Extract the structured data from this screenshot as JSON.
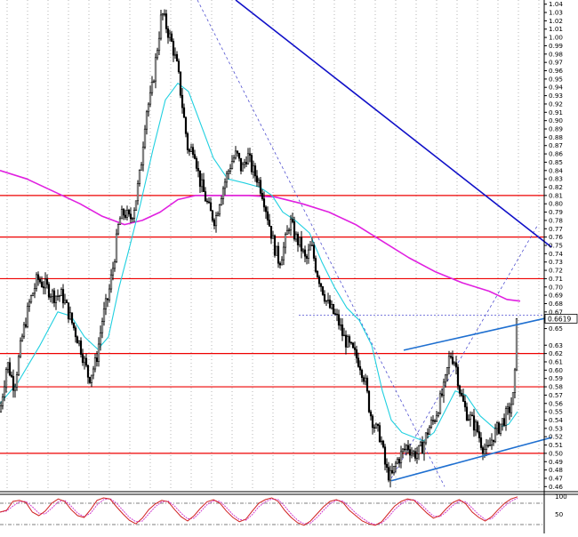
{
  "chart_data": [
    {
      "type": "candlestick",
      "axis": {
        "ylim": [
          0.455,
          1.045
        ],
        "ticks": [
          "1.04",
          "1.03",
          "1.02",
          "1.01",
          "1.00",
          "0.99",
          "0.98",
          "0.97",
          "0.96",
          "0.95",
          "0.94",
          "0.93",
          "0.92",
          "0.91",
          "0.90",
          "0.89",
          "0.88",
          "0.87",
          "0.86",
          "0.85",
          "0.84",
          "0.83",
          "0.82",
          "0.81",
          "0.80",
          "0.79",
          "0.78",
          "0.77",
          "0.76",
          "0.75",
          "0.74",
          "0.73",
          "0.72",
          "0.71",
          "0.70",
          "0.69",
          "0.68",
          "0.67",
          "0.66",
          "0.65",
          "0.63",
          "0.62",
          "0.61",
          "0.60",
          "0.59",
          "0.58",
          "0.57",
          "0.56",
          "0.55",
          "0.54",
          "0.53",
          "0.52",
          "0.51",
          "0.50",
          "0.49",
          "0.48",
          "0.47",
          "0.46"
        ],
        "position": "right",
        "grid": "vertical-dotted"
      },
      "last_price": "0.6619",
      "colors": {
        "candle": "#000000",
        "horizontal_levels": "#ee0000",
        "trendlines": "#1e6fd0",
        "long_trendline": "#1010c8",
        "slow_ma": "#e020e0",
        "fast_ma": "#20d0e0",
        "dotted_guides": "#5050d0"
      },
      "horizontal_levels": [
        0.81,
        0.76,
        0.71,
        0.62,
        0.58,
        0.5
      ],
      "dotted_level": 0.666,
      "control_points": [
        [
          0,
          0.55
        ],
        [
          8,
          0.61
        ],
        [
          16,
          0.58
        ],
        [
          25,
          0.64
        ],
        [
          33,
          0.68
        ],
        [
          42,
          0.71
        ],
        [
          52,
          0.7
        ],
        [
          60,
          0.69
        ],
        [
          70,
          0.69
        ],
        [
          80,
          0.66
        ],
        [
          90,
          0.63
        ],
        [
          100,
          0.59
        ],
        [
          108,
          0.61
        ],
        [
          115,
          0.66
        ],
        [
          122,
          0.69
        ],
        [
          128,
          0.73
        ],
        [
          134,
          0.78
        ],
        [
          140,
          0.79
        ],
        [
          146,
          0.78
        ],
        [
          152,
          0.8
        ],
        [
          158,
          0.84
        ],
        [
          164,
          0.91
        ],
        [
          170,
          0.93
        ],
        [
          176,
          0.98
        ],
        [
          182,
          1.03
        ],
        [
          188,
          1.01
        ],
        [
          194,
          0.99
        ],
        [
          200,
          0.96
        ],
        [
          206,
          0.91
        ],
        [
          212,
          0.86
        ],
        [
          218,
          0.87
        ],
        [
          224,
          0.83
        ],
        [
          230,
          0.81
        ],
        [
          236,
          0.79
        ],
        [
          242,
          0.78
        ],
        [
          248,
          0.81
        ],
        [
          254,
          0.83
        ],
        [
          260,
          0.85
        ],
        [
          266,
          0.86
        ],
        [
          272,
          0.84
        ],
        [
          278,
          0.86
        ],
        [
          284,
          0.84
        ],
        [
          290,
          0.83
        ],
        [
          296,
          0.81
        ],
        [
          302,
          0.78
        ],
        [
          308,
          0.75
        ],
        [
          314,
          0.73
        ],
        [
          320,
          0.75
        ],
        [
          326,
          0.78
        ],
        [
          332,
          0.76
        ],
        [
          338,
          0.75
        ],
        [
          344,
          0.73
        ],
        [
          350,
          0.75
        ],
        [
          356,
          0.72
        ],
        [
          362,
          0.7
        ],
        [
          368,
          0.68
        ],
        [
          374,
          0.67
        ],
        [
          380,
          0.66
        ],
        [
          386,
          0.64
        ],
        [
          392,
          0.63
        ],
        [
          398,
          0.62
        ],
        [
          404,
          0.61
        ],
        [
          410,
          0.59
        ],
        [
          416,
          0.55
        ],
        [
          422,
          0.53
        ],
        [
          428,
          0.52
        ],
        [
          434,
          0.48
        ],
        [
          440,
          0.47
        ],
        [
          446,
          0.49
        ],
        [
          452,
          0.5
        ],
        [
          458,
          0.51
        ],
        [
          464,
          0.5
        ],
        [
          470,
          0.5
        ],
        [
          476,
          0.51
        ],
        [
          482,
          0.53
        ],
        [
          488,
          0.54
        ],
        [
          494,
          0.56
        ],
        [
          500,
          0.58
        ],
        [
          506,
          0.62
        ],
        [
          512,
          0.61
        ],
        [
          518,
          0.57
        ],
        [
          524,
          0.55
        ],
        [
          530,
          0.54
        ],
        [
          536,
          0.53
        ],
        [
          542,
          0.51
        ],
        [
          548,
          0.5
        ],
        [
          554,
          0.52
        ],
        [
          560,
          0.53
        ],
        [
          566,
          0.54
        ],
        [
          572,
          0.55
        ],
        [
          578,
          0.57
        ],
        [
          582,
          0.66
        ]
      ],
      "fast_ma": [
        [
          0,
          0.56
        ],
        [
          20,
          0.585
        ],
        [
          45,
          0.63
        ],
        [
          65,
          0.67
        ],
        [
          80,
          0.665
        ],
        [
          95,
          0.64
        ],
        [
          110,
          0.625
        ],
        [
          122,
          0.64
        ],
        [
          134,
          0.7
        ],
        [
          145,
          0.745
        ],
        [
          158,
          0.8
        ],
        [
          172,
          0.865
        ],
        [
          186,
          0.925
        ],
        [
          200,
          0.945
        ],
        [
          212,
          0.935
        ],
        [
          226,
          0.895
        ],
        [
          240,
          0.855
        ],
        [
          256,
          0.83
        ],
        [
          275,
          0.825
        ],
        [
          292,
          0.82
        ],
        [
          306,
          0.81
        ],
        [
          318,
          0.79
        ],
        [
          332,
          0.78
        ],
        [
          348,
          0.765
        ],
        [
          362,
          0.73
        ],
        [
          376,
          0.7
        ],
        [
          390,
          0.675
        ],
        [
          404,
          0.66
        ],
        [
          418,
          0.63
        ],
        [
          430,
          0.575
        ],
        [
          440,
          0.54
        ],
        [
          452,
          0.525
        ],
        [
          464,
          0.52
        ],
        [
          476,
          0.515
        ],
        [
          488,
          0.525
        ],
        [
          500,
          0.55
        ],
        [
          512,
          0.575
        ],
        [
          524,
          0.57
        ],
        [
          540,
          0.545
        ],
        [
          556,
          0.53
        ],
        [
          572,
          0.535
        ],
        [
          582,
          0.55
        ]
      ],
      "slow_ma": [
        [
          0,
          0.84
        ],
        [
          30,
          0.83
        ],
        [
          60,
          0.815
        ],
        [
          90,
          0.8
        ],
        [
          115,
          0.785
        ],
        [
          140,
          0.775
        ],
        [
          160,
          0.78
        ],
        [
          180,
          0.79
        ],
        [
          200,
          0.805
        ],
        [
          220,
          0.81
        ],
        [
          250,
          0.81
        ],
        [
          280,
          0.81
        ],
        [
          310,
          0.808
        ],
        [
          340,
          0.8
        ],
        [
          370,
          0.79
        ],
        [
          400,
          0.775
        ],
        [
          430,
          0.755
        ],
        [
          460,
          0.735
        ],
        [
          490,
          0.718
        ],
        [
          520,
          0.705
        ],
        [
          550,
          0.695
        ],
        [
          570,
          0.685
        ],
        [
          585,
          0.683
        ]
      ],
      "trendlines": [
        {
          "from": [
            440,
            0.467
          ],
          "to": [
            620,
            0.519
          ]
        },
        {
          "from": [
            454,
            0.624
          ],
          "to": [
            620,
            0.664
          ]
        },
        {
          "from": [
            265,
            1.045
          ],
          "to": [
            620,
            0.748
          ]
        }
      ],
      "dotted_guides": [
        {
          "from": [
            222,
            1.045
          ],
          "to": [
            500,
            0.46
          ]
        },
        {
          "from": [
            440,
            0.47
          ],
          "to": [
            605,
            0.775
          ]
        }
      ]
    },
    {
      "type": "oscillator",
      "ticks": [
        "100",
        "50"
      ],
      "values_main": [
        55,
        60,
        85,
        88,
        82,
        55,
        45,
        58,
        80,
        92,
        85,
        62,
        45,
        40,
        62,
        88,
        95,
        92,
        70,
        50,
        32,
        22,
        38,
        62,
        78,
        88,
        84,
        62,
        42,
        30,
        45,
        66,
        84,
        90,
        80,
        58,
        40,
        28,
        35,
        58,
        80,
        90,
        95,
        85,
        60,
        40,
        25,
        18,
        30,
        50,
        70,
        85,
        90,
        82,
        60,
        45,
        30,
        22,
        18,
        28,
        50,
        72,
        85,
        92,
        88,
        70,
        52,
        38,
        45,
        65,
        82,
        90,
        78,
        55,
        40,
        30,
        42,
        62,
        80,
        92,
        98
      ],
      "values_signal": [
        55,
        58,
        72,
        84,
        85,
        70,
        52,
        50,
        66,
        84,
        88,
        72,
        52,
        42,
        52,
        75,
        90,
        93,
        80,
        60,
        40,
        28,
        30,
        50,
        70,
        84,
        86,
        72,
        52,
        36,
        38,
        56,
        76,
        87,
        85,
        68,
        48,
        34,
        32,
        48,
        70,
        84,
        92,
        90,
        72,
        50,
        32,
        22,
        24,
        40,
        60,
        78,
        88,
        86,
        70,
        52,
        38,
        26,
        20,
        24,
        40,
        62,
        78,
        88,
        90,
        78,
        60,
        44,
        42,
        56,
        74,
        86,
        84,
        66,
        48,
        34,
        36,
        54,
        72,
        86,
        94
      ]
    }
  ]
}
